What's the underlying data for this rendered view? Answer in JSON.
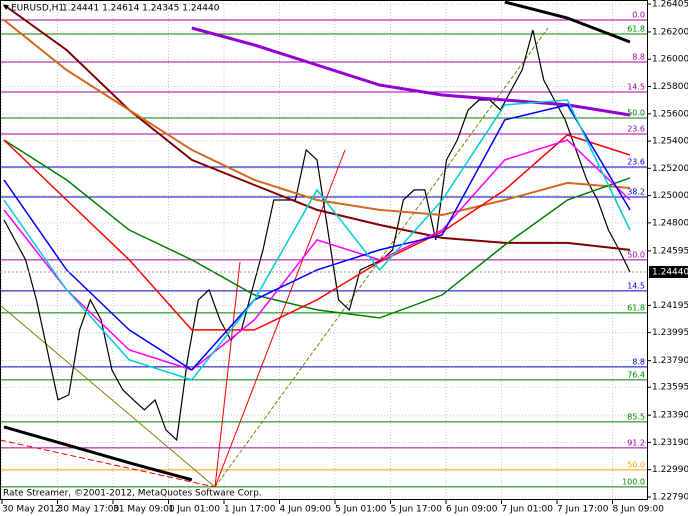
{
  "chart_data": {
    "type": "line",
    "title": "EURUSD,H1",
    "quote": "1.24441 1.24614 1.24345 1.24440",
    "footer": "Rate Streamer, ©2001-2012, MetaQuotes Software Corp.",
    "current_price": {
      "value": 1.2444,
      "label": "1.24440"
    },
    "ylim": [
      1.2279,
      1.26405
    ],
    "yticks": [
      1.26405,
      {
        "value": 1.262,
        "label": "1.26200"
      },
      {
        "value": 1.26,
        "label": "1.26000"
      },
      {
        "value": 1.258,
        "label": "1.25800"
      },
      {
        "value": 1.256,
        "label": "1.25600"
      },
      {
        "value": 1.254,
        "label": "1.25400"
      },
      {
        "value": 1.252,
        "label": "1.25200"
      },
      {
        "value": 1.25,
        "label": "1.25000"
      },
      {
        "value": 1.248,
        "label": "1.24800"
      },
      1.24595,
      1.24195,
      1.23995,
      {
        "value": 1.2379,
        "label": "1.23790"
      },
      1.23595,
      {
        "value": 1.2339,
        "label": "1.23390"
      },
      {
        "value": 1.2319,
        "label": "1.23190"
      },
      {
        "value": 1.2299,
        "label": "1.22990"
      },
      {
        "value": 1.2279,
        "label": "1.22790"
      }
    ],
    "xticks": [
      "30 May 2012",
      "30 May 17:00",
      "31 May 09:00",
      "1 Jun 01:00",
      "1 Jun 17:00",
      "4 Jun 09:00",
      "5 Jun 01:00",
      "5 Jun 17:00",
      "6 Jun 09:00",
      "7 Jun 01:00",
      "7 Jun 17:00",
      "8 Jun 09:00"
    ],
    "grid": true,
    "series": [
      {
        "color": "#000000",
        "width": 1.2,
        "values": [
          1.24822,
          1.24675,
          1.24529,
          1.24235,
          1.23869,
          1.23502,
          1.23539,
          1.24015,
          1.24235,
          1.24089,
          1.23722,
          1.23576,
          1.23502,
          1.23429,
          1.23502,
          1.23282,
          1.23209,
          1.23796,
          1.24235,
          1.24309,
          1.24089,
          1.23942,
          1.24015,
          1.24309,
          1.24602,
          1.24968,
          1.24968,
          1.24968,
          1.25335,
          1.25262,
          1.24748,
          1.24235,
          1.24162,
          1.24455,
          1.24492,
          1.24529,
          1.24602,
          1.24968,
          1.25042,
          1.25042,
          1.24675,
          1.25262,
          1.25408,
          1.25628,
          1.25701,
          1.25701,
          1.25628,
          1.25775,
          1.25921,
          1.26214,
          1.25848,
          1.25701,
          1.25555,
          1.25335,
          1.25115,
          1.24968,
          1.24748,
          1.24602,
          1.2444
        ]
      },
      {
        "color": "#000000",
        "width": 3,
        "values": [
          null,
          null,
          null,
          null,
          null,
          null,
          null,
          null,
          1.2642,
          1.26302,
          1.26126
        ]
      },
      {
        "color": "#000000",
        "width": 3,
        "values": [
          1.23304,
          1.23173,
          1.23041,
          1.22916,
          null,
          null,
          null,
          null,
          null,
          null,
          null
        ]
      },
      {
        "color": "#9400d3",
        "width": 3,
        "values": [
          null,
          null,
          null,
          1.26229,
          1.26104,
          1.25958,
          1.25811,
          1.25738,
          1.25701,
          1.25665,
          1.25591
        ]
      },
      {
        "color": "#800000",
        "width": 2,
        "values": [
          1.26398,
          1.26068,
          1.25628,
          1.25262,
          1.25078,
          1.24895,
          1.24785,
          1.2469,
          1.24653,
          1.24653,
          1.24602
        ]
      },
      {
        "color": "#d2691e",
        "width": 2,
        "values": [
          1.26288,
          1.25921,
          1.25628,
          1.25335,
          1.25115,
          1.24968,
          1.24895,
          1.24858,
          1.24968,
          1.25093,
          1.25056
        ]
      },
      {
        "color": "#008000",
        "width": 1.5,
        "values": [
          1.25408,
          1.25115,
          1.24748,
          1.24529,
          1.24272,
          1.24162,
          1.24103,
          1.24272,
          1.24638,
          1.24968,
          1.2513
        ]
      },
      {
        "color": "#ff0000",
        "width": 1.5,
        "values": [
          1.25408,
          1.24968,
          1.24529,
          1.24015,
          1.24015,
          1.24235,
          1.24514,
          1.24734,
          1.25042,
          1.25445,
          1.25298
        ]
      },
      {
        "color": "#ff00ff",
        "width": 1.5,
        "values": [
          1.24895,
          1.24309,
          1.23869,
          1.23722,
          1.24089,
          1.24675,
          1.24529,
          1.24748,
          1.25262,
          1.25408,
          1.24968
        ]
      },
      {
        "color": "#0000ff",
        "width": 1.5,
        "values": [
          1.25115,
          1.24455,
          1.24015,
          1.23722,
          1.24235,
          1.24455,
          1.24602,
          1.24712,
          1.25555,
          1.25665,
          1.24895
        ]
      },
      {
        "color": "#00ced1",
        "width": 1.5,
        "values": [
          1.24968,
          1.24309,
          1.23796,
          1.23649,
          1.24235,
          1.25042,
          1.24455,
          1.24968,
          1.25665,
          1.25701,
          1.24748
        ]
      }
    ],
    "fib_levels": [
      {
        "label": "0.0",
        "value": 1.26288,
        "color": "#a000a0"
      },
      {
        "label": "61.8",
        "value": 1.26185,
        "color": "#008000"
      },
      {
        "label": "8.8",
        "value": 1.2598,
        "color": "#a000a0"
      },
      {
        "label": "14.5",
        "value": 1.2576,
        "color": "#a000a0"
      },
      {
        "label": "50.0",
        "value": 1.25569,
        "color": "#008000"
      },
      {
        "label": "23.6",
        "value": 1.25452,
        "color": "#a000a0"
      },
      {
        "label": "23.6",
        "value": 1.2521,
        "color": "#0000c0"
      },
      {
        "label": "38.2",
        "value": 1.2499,
        "color": "#0000c0"
      },
      {
        "label": "50.0",
        "value": 1.24529,
        "color": "#a000a0"
      },
      {
        "label": "14.5",
        "value": 1.24301,
        "color": "#0000c0"
      },
      {
        "label": "61.8",
        "value": 1.2414,
        "color": "#008000"
      },
      {
        "label": "8.8",
        "value": 1.23744,
        "color": "#0000c0"
      },
      {
        "label": "76.4",
        "value": 1.23649,
        "color": "#008000"
      },
      {
        "label": "85.5",
        "value": 1.23341,
        "color": "#008000"
      },
      {
        "label": "91.2",
        "value": 1.2315,
        "color": "#a000a0"
      },
      {
        "label": "50.0",
        "value": 1.22989,
        "color": "#ffa500"
      },
      {
        "label": "100.0",
        "value": 1.22864,
        "color": "#008000"
      }
    ]
  }
}
